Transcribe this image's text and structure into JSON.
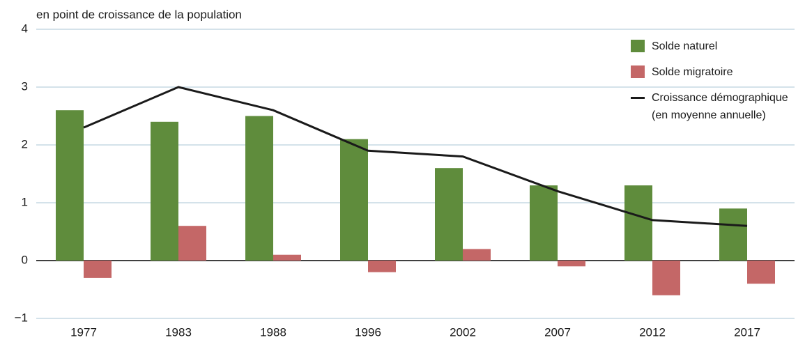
{
  "chart_data": {
    "type": "bar",
    "title": "en point de croissance de la population",
    "categories": [
      "1977",
      "1983",
      "1988",
      "1996",
      "2002",
      "2007",
      "2012",
      "2017"
    ],
    "series": [
      {
        "name": "Solde naturel",
        "color": "#5f8c3c",
        "type": "bar",
        "values": [
          2.6,
          2.4,
          2.5,
          2.1,
          1.6,
          1.3,
          1.3,
          0.9
        ]
      },
      {
        "name": "Solde migratoire",
        "color": "#c46767",
        "type": "bar",
        "values": [
          -0.3,
          0.6,
          0.1,
          -0.2,
          0.2,
          -0.1,
          -0.6,
          -0.4
        ]
      },
      {
        "name": "Croissance démographique\n(en moyenne annuelle)",
        "color": "#1a1a1a",
        "type": "line",
        "values": [
          2.3,
          3.0,
          2.6,
          1.9,
          1.8,
          1.2,
          0.7,
          0.6
        ]
      }
    ],
    "ylim": [
      -1,
      4
    ],
    "yticks": [
      {
        "value": -1,
        "label": "−1"
      },
      0,
      1,
      2,
      3,
      4
    ],
    "grid": true,
    "legend": "top-right"
  }
}
